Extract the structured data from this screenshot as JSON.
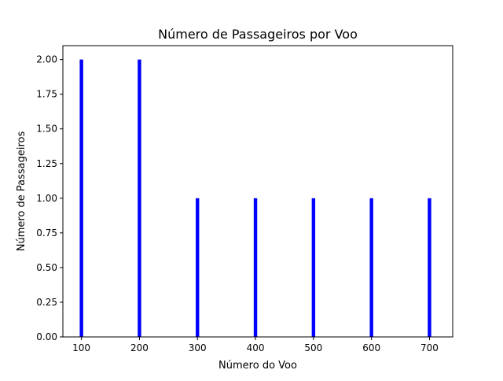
{
  "chart_data": {
    "type": "bar",
    "title": "Número de Passageiros por Voo",
    "xlabel": "Número do Voo",
    "ylabel": "Número de Passageiros",
    "x": [
      100,
      200,
      300,
      400,
      500,
      600,
      700
    ],
    "values": [
      2,
      2,
      1,
      1,
      1,
      1,
      1
    ],
    "bar_width": 6,
    "bar_color": "#0000ff",
    "xlim": [
      68,
      740
    ],
    "ylim": [
      0,
      2.1
    ],
    "x_ticks": [
      100,
      200,
      300,
      400,
      500,
      600,
      700
    ],
    "x_tick_labels": [
      "100",
      "200",
      "300",
      "400",
      "500",
      "600",
      "700"
    ],
    "y_ticks": [
      0,
      0.25,
      0.5,
      0.75,
      1.0,
      1.25,
      1.5,
      1.75,
      2.0
    ],
    "y_tick_labels": [
      "0.00",
      "0.25",
      "0.50",
      "0.75",
      "1.00",
      "1.25",
      "1.50",
      "1.75",
      "2.00"
    ],
    "grid": false,
    "legend": "none"
  }
}
